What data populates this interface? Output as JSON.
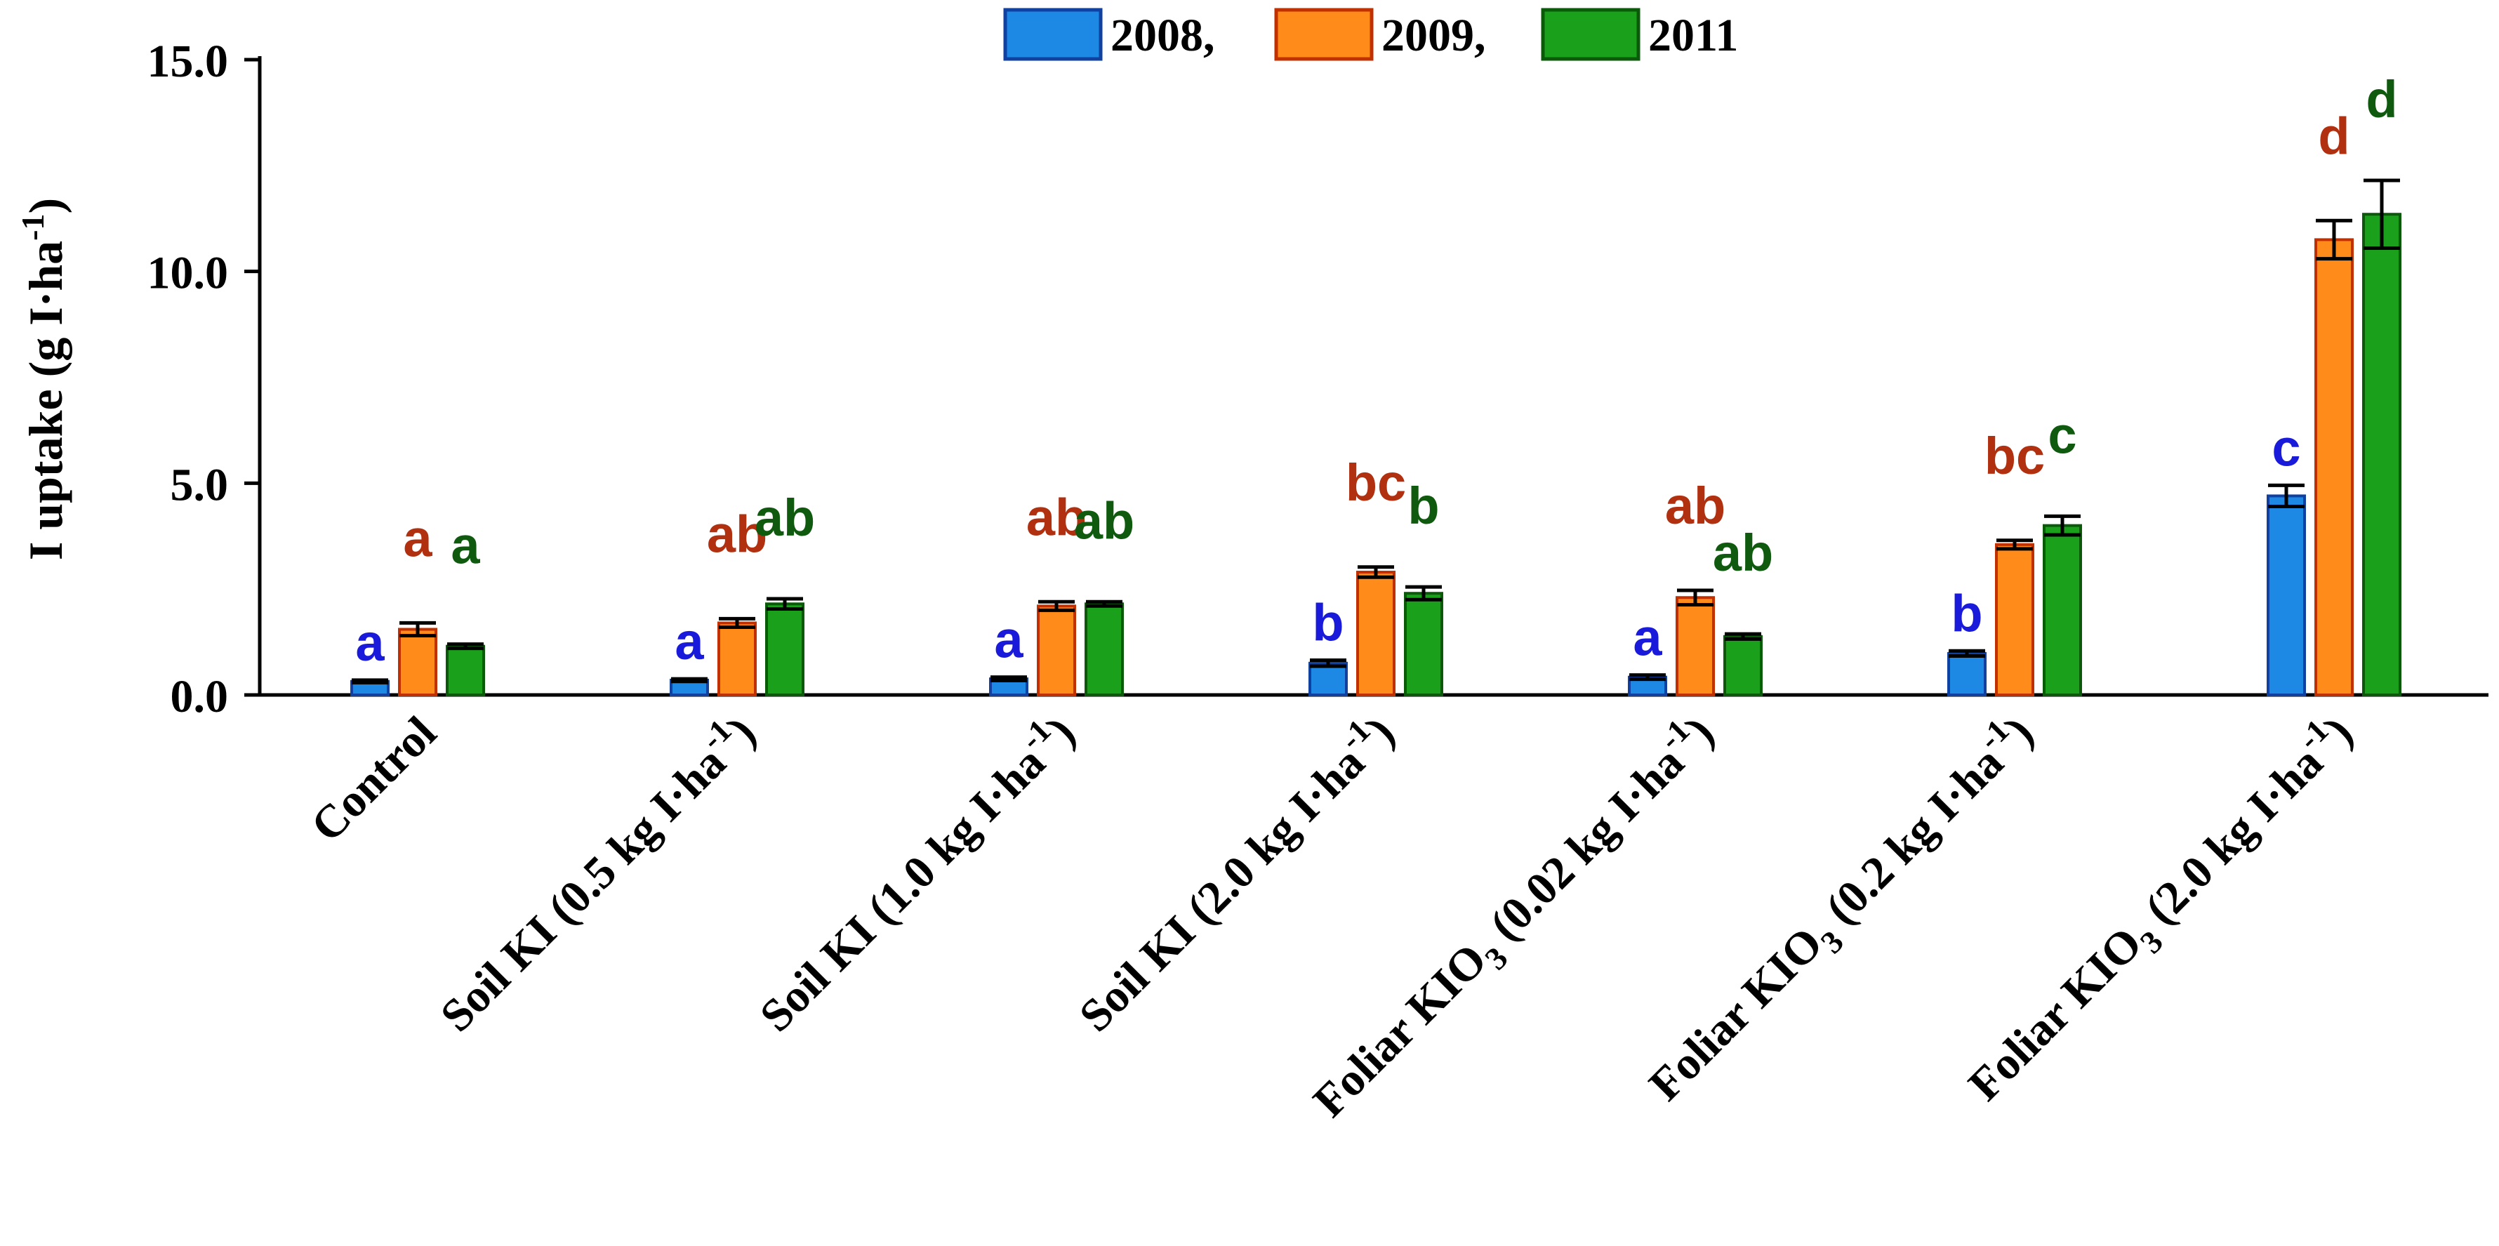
{
  "chart_data": {
    "type": "bar",
    "title": "",
    "ylabel": "I uptake (g I·ha",
    "ylabel_sup": "-1",
    "ylabel_end": ")",
    "xlabel": "",
    "ylim": [
      0,
      15
    ],
    "yticks": [
      "0.0",
      "5.0",
      "10.0",
      "15.0"
    ],
    "ytick_values": [
      0,
      5,
      10,
      15
    ],
    "legend_position": "top-center",
    "categories": [
      {
        "pre": "Control",
        "sub": "",
        "mid": "",
        "sup": "",
        "post": ""
      },
      {
        "pre": "Soil KI (0.5 kg I·ha",
        "sub": "",
        "mid": "",
        "sup": "-1",
        "post": ")"
      },
      {
        "pre": "Soil KI (1.0 kg I·ha",
        "sub": "",
        "mid": "",
        "sup": "-1",
        "post": ")"
      },
      {
        "pre": "Soil KI (2.0 kg I·ha",
        "sub": "",
        "mid": "",
        "sup": "-1",
        "post": ")"
      },
      {
        "pre": "Foliar KIO",
        "sub": "3",
        "mid": " (0.02 kg I·ha",
        "sup": "-1",
        "post": ")"
      },
      {
        "pre": "Foliar KIO",
        "sub": "3",
        "mid": " (0.2 kg I·ha",
        "sup": "-1",
        "post": ")"
      },
      {
        "pre": "Foliar KIO",
        "sub": "3",
        "mid": " (2.0 kg I·ha",
        "sup": "-1",
        "post": ")"
      }
    ],
    "series": [
      {
        "name": "2008,",
        "color": "#1e88e5",
        "edge": "#1040a0",
        "letter_color": "#1a1adb",
        "values": [
          0.32,
          0.35,
          0.38,
          0.75,
          0.42,
          0.98,
          4.7
        ],
        "errors": [
          0.03,
          0.03,
          0.04,
          0.07,
          0.05,
          0.06,
          0.25
        ],
        "letters": [
          "a",
          "a",
          "a",
          "b",
          "a",
          "b",
          "c"
        ]
      },
      {
        "name": "2009,",
        "color": "#ff8c1a",
        "edge": "#c03000",
        "letter_color": "#b03010",
        "values": [
          1.55,
          1.7,
          2.1,
          2.9,
          2.3,
          3.55,
          10.75
        ],
        "errors": [
          0.15,
          0.1,
          0.1,
          0.12,
          0.17,
          0.1,
          0.45
        ],
        "letters": [
          "a",
          "ab",
          "ab",
          "bc",
          "ab",
          "bc",
          "d"
        ]
      },
      {
        "name": "2011",
        "color": "#1aa01a",
        "edge": "#0a5a0a",
        "letter_color": "#0f5a0f",
        "values": [
          1.15,
          2.15,
          2.15,
          2.4,
          1.38,
          4.0,
          11.35
        ],
        "errors": [
          0.05,
          0.12,
          0.05,
          0.15,
          0.06,
          0.22,
          0.8
        ],
        "letters": [
          "a",
          "ab",
          "ab",
          "b",
          "ab",
          "c",
          "d"
        ]
      }
    ]
  }
}
